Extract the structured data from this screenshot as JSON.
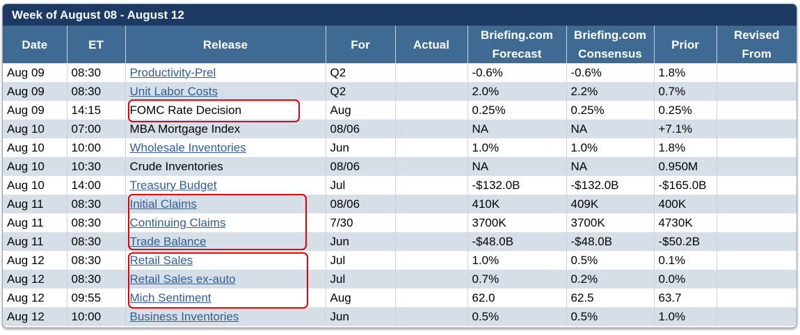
{
  "title": "Week of August 08 - August 12",
  "columns": [
    "Date",
    "ET",
    "Release",
    "For",
    "Actual",
    "Briefing.com\nForecast",
    "Briefing.com\nConsensus",
    "Prior",
    "Revised\nFrom"
  ],
  "rows": [
    {
      "date": "Aug 09",
      "et": "08:30",
      "release": "Productivity-Prel",
      "link": true,
      "for": "Q2",
      "actual": "",
      "forecast": "-0.6%",
      "consensus": "-0.6%",
      "prior": "1.8%",
      "revised": ""
    },
    {
      "date": "Aug 09",
      "et": "08:30",
      "release": "Unit Labor Costs",
      "link": true,
      "for": "Q2",
      "actual": "",
      "forecast": "2.0%",
      "consensus": "2.2%",
      "prior": "0.7%",
      "revised": ""
    },
    {
      "date": "Aug 09",
      "et": "14:15",
      "release": "FOMC Rate Decision",
      "link": false,
      "for": "Aug",
      "actual": "",
      "forecast": "0.25%",
      "consensus": "0.25%",
      "prior": "0.25%",
      "revised": ""
    },
    {
      "date": "Aug 10",
      "et": "07:00",
      "release": "MBA Mortgage Index",
      "link": false,
      "for": "08/06",
      "actual": "",
      "forecast": "NA",
      "consensus": "NA",
      "prior": "+7.1%",
      "revised": ""
    },
    {
      "date": "Aug 10",
      "et": "10:00",
      "release": "Wholesale Inventories",
      "link": true,
      "for": "Jun",
      "actual": "",
      "forecast": "1.0%",
      "consensus": "1.0%",
      "prior": "1.8%",
      "revised": ""
    },
    {
      "date": "Aug 10",
      "et": "10:30",
      "release": "Crude Inventories",
      "link": false,
      "for": "08/06",
      "actual": "",
      "forecast": "NA",
      "consensus": "NA",
      "prior": "0.950M",
      "revised": ""
    },
    {
      "date": "Aug 10",
      "et": "14:00",
      "release": "Treasury Budget",
      "link": true,
      "for": "Jul",
      "actual": "",
      "forecast": "-$132.0B",
      "consensus": "-$132.0B",
      "prior": "-$165.0B",
      "revised": ""
    },
    {
      "date": "Aug 11",
      "et": "08:30",
      "release": "Initial Claims",
      "link": true,
      "for": "08/06",
      "actual": "",
      "forecast": "410K",
      "consensus": "409K",
      "prior": "400K",
      "revised": ""
    },
    {
      "date": "Aug 11",
      "et": "08:30",
      "release": "Continuing Claims",
      "link": true,
      "for": "7/30",
      "actual": "",
      "forecast": "3700K",
      "consensus": "3700K",
      "prior": "4730K",
      "revised": ""
    },
    {
      "date": "Aug 11",
      "et": "08:30",
      "release": "Trade Balance",
      "link": true,
      "for": "Jun",
      "actual": "",
      "forecast": "-$48.0B",
      "consensus": "-$48.0B",
      "prior": "-$50.2B",
      "revised": ""
    },
    {
      "date": "Aug 12",
      "et": "08:30",
      "release": "Retail Sales",
      "link": true,
      "for": "Jul",
      "actual": "",
      "forecast": "1.0%",
      "consensus": "0.5%",
      "prior": "0.1%",
      "revised": ""
    },
    {
      "date": "Aug 12",
      "et": "08:30",
      "release": "Retail Sales ex-auto",
      "link": true,
      "for": "Jul",
      "actual": "",
      "forecast": "0.7%",
      "consensus": "0.2%",
      "prior": "0.0%",
      "revised": ""
    },
    {
      "date": "Aug 12",
      "et": "09:55",
      "release": "Mich Sentiment",
      "link": true,
      "for": "Aug",
      "actual": "",
      "forecast": "62.0",
      "consensus": "62.5",
      "prior": "63.7",
      "revised": ""
    },
    {
      "date": "Aug 12",
      "et": "10:00",
      "release": "Business Inventories",
      "link": true,
      "for": "Jun",
      "actual": "",
      "forecast": "0.5%",
      "consensus": "0.5%",
      "prior": "1.0%",
      "revised": ""
    }
  ],
  "colors": {
    "title_bg": "#1c3a63",
    "header_bg": "#3f6b92",
    "row_alt": "#d6dee7",
    "link": "#2f5f93",
    "highlight": "#e00000"
  }
}
